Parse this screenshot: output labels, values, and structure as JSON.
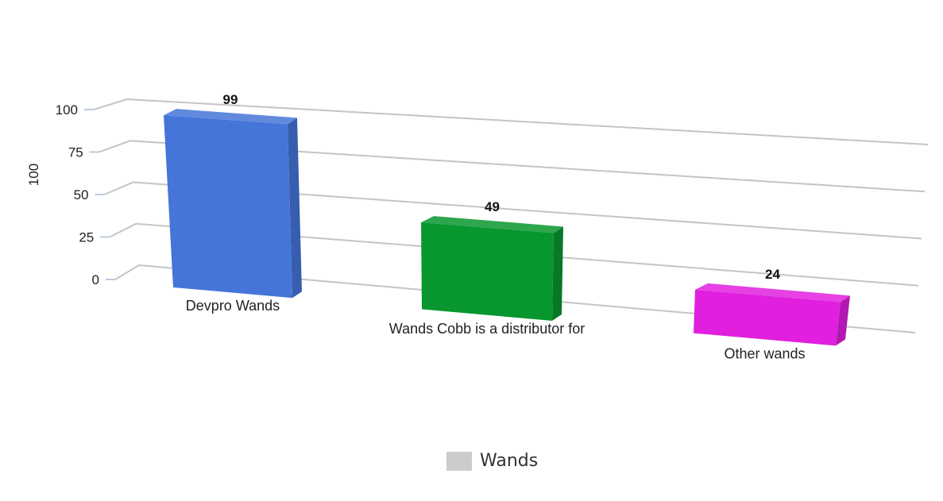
{
  "chart_data": {
    "type": "bar",
    "style": "3d",
    "title": "",
    "ylabel": "100",
    "xlabel": "",
    "ylim": [
      0,
      100
    ],
    "yticks": [
      0,
      25,
      50,
      75,
      100
    ],
    "ytick_labels": [
      "0",
      "25",
      "50",
      "75",
      "100"
    ],
    "grid": true,
    "categories": [
      "Devpro Wands",
      "Wands Cobb is a distributor for",
      "Other wands"
    ],
    "series": [
      {
        "name": "Wands",
        "values": [
          99,
          49,
          24
        ],
        "colors": [
          "#4575d9",
          "#08962f",
          "#e01fdf"
        ]
      }
    ],
    "data_labels": [
      "99",
      "49",
      "24"
    ],
    "legend": {
      "position": "bottom",
      "entries": [
        "Wands"
      ],
      "swatch_color": "#cccccc"
    }
  }
}
